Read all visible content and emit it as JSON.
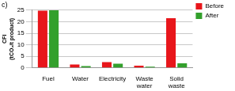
{
  "chart_data": {
    "type": "bar",
    "title": "c)",
    "y_label": "CFI (tCO₂/t product)",
    "categories": [
      "Fuel",
      "Water",
      "Electricity",
      "Waste water",
      "Solid waste"
    ],
    "series": [
      {
        "name": "Before",
        "color": "#e8161b",
        "values": [
          24.8,
          1.5,
          2.5,
          1.0,
          21.5
        ]
      },
      {
        "name": "After",
        "color": "#33a02c",
        "values": [
          24.9,
          0.8,
          1.8,
          0.5,
          2.0
        ]
      }
    ],
    "ylim": [
      0,
      25
    ],
    "yticks": [
      0,
      5,
      10,
      15,
      20,
      25
    ],
    "grid": true,
    "legend": "top-right"
  }
}
